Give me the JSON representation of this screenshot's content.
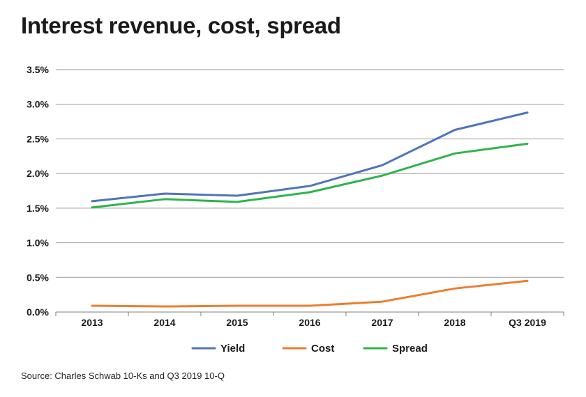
{
  "chart_data": {
    "type": "line",
    "title": "Interest revenue, cost, spread",
    "source": "Source: Charles Schwab 10-Ks and Q3 2019 10-Q",
    "categories": [
      "2013",
      "2014",
      "2015",
      "2016",
      "2017",
      "2018",
      "Q3 2019"
    ],
    "ylim": [
      0,
      3.5
    ],
    "ytick_values": [
      0,
      0.5,
      1.0,
      1.5,
      2.0,
      2.5,
      3.0,
      3.5
    ],
    "ytick_labels": [
      "0.0%",
      "0.5%",
      "1.0%",
      "1.5%",
      "2.0%",
      "2.5%",
      "3.0%",
      "3.5%"
    ],
    "xlabel": "",
    "ylabel": "",
    "grid": true,
    "legend_position": "bottom",
    "series": [
      {
        "name": "Yield",
        "color": "#4f74ba",
        "values": [
          1.6,
          1.71,
          1.68,
          1.82,
          2.12,
          2.63,
          2.88
        ]
      },
      {
        "name": "Cost",
        "color": "#ed7d31",
        "values": [
          0.09,
          0.08,
          0.09,
          0.09,
          0.15,
          0.34,
          0.45
        ]
      },
      {
        "name": "Spread",
        "color": "#2db44a",
        "values": [
          1.51,
          1.63,
          1.59,
          1.73,
          1.97,
          2.29,
          2.43
        ]
      }
    ]
  }
}
